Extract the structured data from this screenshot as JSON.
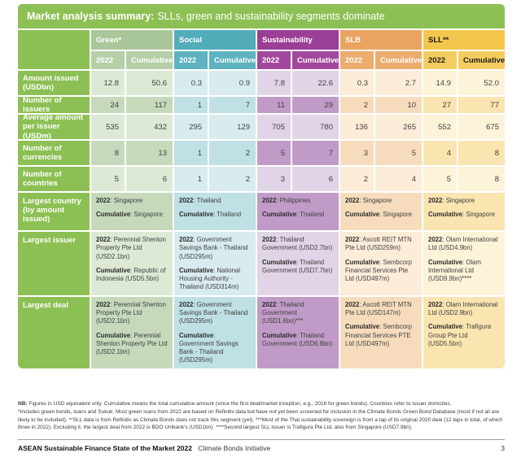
{
  "title": {
    "bold": "Market analysis summary:",
    "rest": "SLLs, green and sustainability segments dominate"
  },
  "labels": {
    "year": "2022",
    "cumulative": "Cumulative",
    "sep": ": "
  },
  "subheaders": [
    "2022",
    "Cumulative"
  ],
  "colors": {
    "brand_green": "#8dc054",
    "white": "#ffffff",
    "dark_text": "#1d1d1b"
  },
  "groups": [
    {
      "label": "Green*",
      "text": "light",
      "header": "#a9c79a",
      "sub": "#b5cfa8",
      "light": "#dde9d5",
      "dark": "#c6dabb"
    },
    {
      "label": "Social",
      "text": "light",
      "header": "#52adbb",
      "sub": "#5db3bf",
      "light": "#d8ecef",
      "dark": "#bfe0e5"
    },
    {
      "label": "Sustainability",
      "text": "light",
      "header": "#9b3e96",
      "sub": "#a1489c",
      "light": "#e1d4e6",
      "dark": "#c19bc8"
    },
    {
      "label": "SLB",
      "text": "light",
      "header": "#eaa460",
      "sub": "#ecac6e",
      "light": "#fcecd8",
      "dark": "#f6dcbd"
    },
    {
      "label": "SLL**",
      "text": "dark",
      "header": "#f3c64d",
      "sub": "#f5cc60",
      "light": "#fdf3d9",
      "dark": "#fae4b0"
    }
  ],
  "metric_rows": [
    {
      "label": "Amount issued (USDbn)",
      "shade": "light",
      "values": [
        "12.8",
        "50.6",
        "0.3",
        "0.9",
        "7.8",
        "22.6",
        "0.3",
        "2.7",
        "14.9",
        "52.0"
      ]
    },
    {
      "label": "Number of issuers",
      "shade": "dark",
      "values": [
        "24",
        "117",
        "1",
        "7",
        "11",
        "29",
        "2",
        "10",
        "27",
        "77"
      ]
    },
    {
      "label": "Average amount per issuer (USDm)",
      "shade": "light",
      "values": [
        "535",
        "432",
        "295",
        "129",
        "705",
        "780",
        "136",
        "265",
        "552",
        "675"
      ]
    },
    {
      "label": "Number of currencies",
      "shade": "dark",
      "values": [
        "8",
        "13",
        "1",
        "2",
        "5",
        "7",
        "3",
        "5",
        "4",
        "8"
      ]
    },
    {
      "label": "Number of countries",
      "shade": "light",
      "values": [
        "5",
        "6",
        "1",
        "2",
        "3",
        "6",
        "2",
        "4",
        "5",
        "8"
      ]
    }
  ],
  "detail_rows": [
    {
      "label": "Largest country (by amount issued)",
      "shade": "dark",
      "cells": [
        {
          "y2022": "Singapore",
          "cumulative": "Singapore"
        },
        {
          "y2022": "Thailand",
          "cumulative": "Thailand"
        },
        {
          "y2022": "Philippines",
          "cumulative": "Thailand"
        },
        {
          "y2022": "Singapore",
          "cumulative": "Singapore"
        },
        {
          "y2022": "Singapore",
          "cumulative": "Singapore"
        }
      ]
    },
    {
      "label": "Largest issuer",
      "shade": "light",
      "cells": [
        {
          "y2022": "Perennial Shenton Property Pte Ltd (USD2.1bn)",
          "cumulative": "Republic of Indonesia (USD5.5bn)"
        },
        {
          "y2022": "Government Savings Bank - Thailand (USD295m)",
          "cumulative": "National Housing Authority - Thailand (USD314m)"
        },
        {
          "y2022": "Thailand Government (USD2.7bn)",
          "cumulative": "Thailand Government (USD7.7bn)"
        },
        {
          "y2022": "Ascott REIT MTN Pte Ltd (USD259m)",
          "cumulative": "Sembcorp Financial Services Pte Ltd (USD497m)"
        },
        {
          "y2022": "Olam International Ltd (USD4.9bn)",
          "cumulative": "Olam International Ltd (USD9.9bn)****"
        }
      ]
    },
    {
      "label": "Largest deal",
      "shade": "dark",
      "cells": [
        {
          "y2022": "Perennial Shenton Property Pte Ltd (USD2.1bn)",
          "cumulative": "Perennial Shenton Property Pte Ltd (USD2.1bn)"
        },
        {
          "y2022": "Government Savings Bank - Thailand (USD295m)",
          "cumulative": "Government Savings Bank - Thailand (USD295m)"
        },
        {
          "y2022": "Thailand Government (USD1.6bn)***",
          "cumulative": "Thailand Government (USD6.8bn)"
        },
        {
          "y2022": "Ascott REIT MTN Pte Ltd (USD147m)",
          "cumulative": "Sembcorp Financial Services PTE Ltd (USD497m)"
        },
        {
          "y2022": "Olam International Ltd (USD2.9bn)",
          "cumulative": "Trafigura Group Pte Ltd (USD5.5bn)"
        }
      ]
    }
  ],
  "notes": {
    "nb_bold": "NB:",
    "nb_text": " Figures in USD equivalent only. Cumulative means the total cumulative amount (since the first deal/market inception, e.g., 2016 for green bonds). Countries refer to issuer domiciles.",
    "footnotes": "*Includes green bonds, loans and Sukuk. Most green loans from 2022 are based on Refinitiv data but have not yet been screened for inclusion in the Climate Bonds Green Bond Database (most if not all are likely to be included). **SLL data is from Refinitiv as Climate Bonds does not track this segment (yet). ***Most of the Thai sustainability sovereign is from a tap of its original 2020 deal (12 taps in total, of which three in 2022). Excluding it, the largest deal from 2022 is BDO Unibank's (USD1bn). ****Second largest SLL issuer is Trafigura Pte Ltd, also from Singapore (USD7.9bn)."
  },
  "footer": {
    "report_title": "ASEAN Sustainable Finance State of the Market 2022",
    "publisher": "Climate Bonds Initiative",
    "page_number": "3"
  }
}
